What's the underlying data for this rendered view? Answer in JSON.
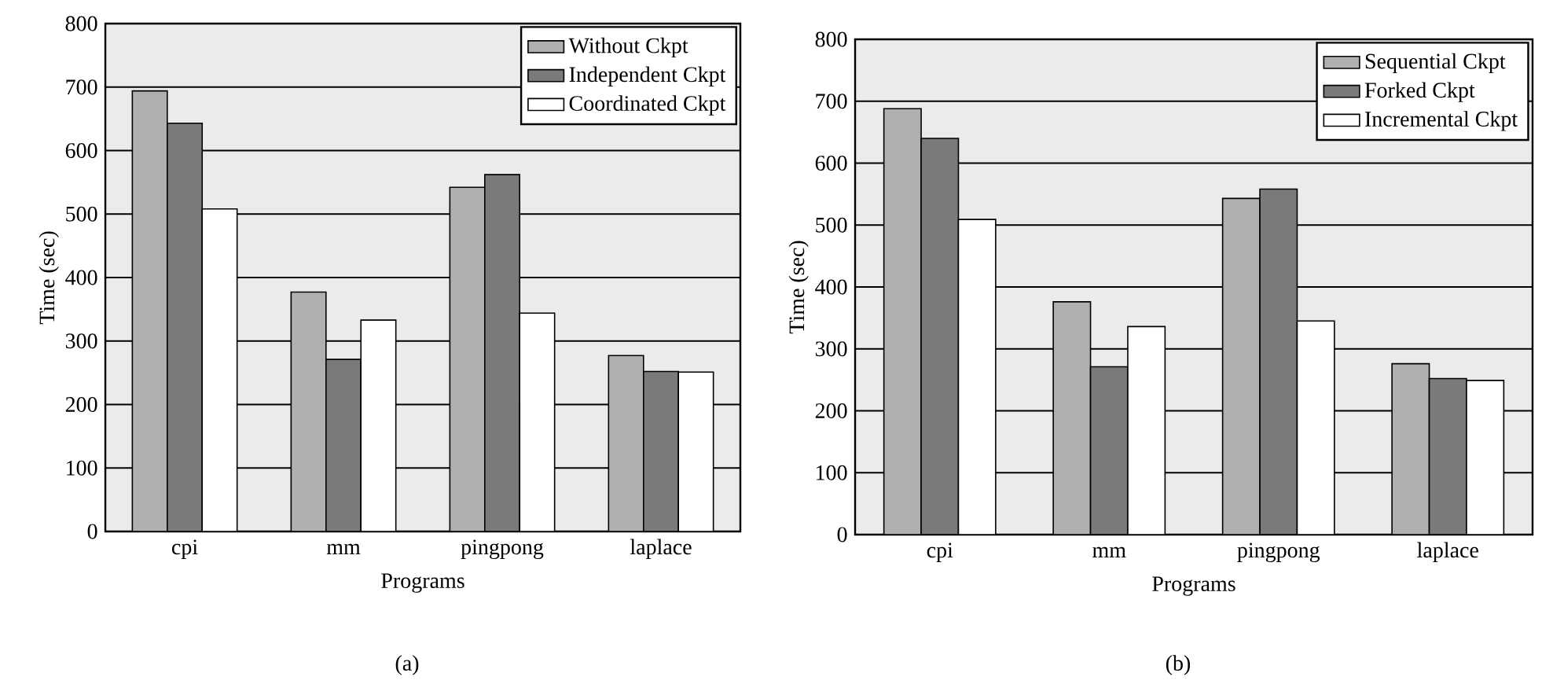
{
  "chart_data": [
    {
      "type": "bar",
      "xlabel": "Programs",
      "ylabel": "Time (sec)",
      "categories": [
        "cpi",
        "mm",
        "pingpong",
        "laplace"
      ],
      "series": [
        {
          "name": "Without Ckpt",
          "color": "#b0b0b0",
          "values": [
            694,
            377,
            542,
            277
          ]
        },
        {
          "name": "Independent Ckpt",
          "color": "#7a7a7a",
          "values": [
            643,
            271,
            562,
            252
          ]
        },
        {
          "name": "Coordinated Ckpt",
          "color": "#ffffff",
          "values": [
            508,
            333,
            344,
            251
          ]
        }
      ],
      "ylim": [
        0,
        800
      ],
      "yticks": [
        0,
        100,
        200,
        300,
        400,
        500,
        600,
        700,
        800
      ],
      "grid": "y",
      "legend": "top right",
      "annotations": [
        "(a)"
      ]
    },
    {
      "type": "bar",
      "xlabel": "Programs",
      "ylabel": "Time (sec)",
      "categories": [
        "cpi",
        "mm",
        "pingpong",
        "laplace"
      ],
      "series": [
        {
          "name": "Sequential Ckpt",
          "color": "#b0b0b0",
          "values": [
            688,
            376,
            543,
            276
          ]
        },
        {
          "name": "Forked Ckpt",
          "color": "#7a7a7a",
          "values": [
            640,
            271,
            558,
            252
          ]
        },
        {
          "name": "Incremental Ckpt",
          "color": "#ffffff",
          "values": [
            509,
            336,
            345,
            249
          ]
        }
      ],
      "ylim": [
        0,
        800
      ],
      "yticks": [
        0,
        100,
        200,
        300,
        400,
        500,
        600,
        700,
        800
      ],
      "grid": "y",
      "legend": "top right",
      "annotations": [
        "(b)"
      ]
    }
  ]
}
